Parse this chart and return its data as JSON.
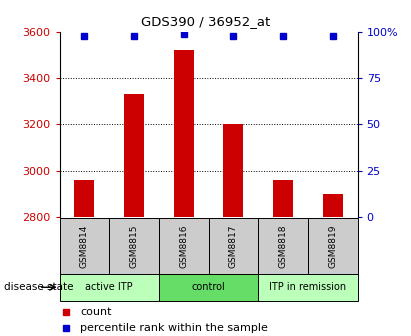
{
  "title": "GDS390 / 36952_at",
  "samples": [
    "GSM8814",
    "GSM8815",
    "GSM8816",
    "GSM8817",
    "GSM8818",
    "GSM8819"
  ],
  "counts": [
    2960,
    3330,
    3520,
    3200,
    2960,
    2900
  ],
  "percentile_ranks": [
    98,
    98,
    99,
    98,
    98,
    98
  ],
  "bar_color": "#cc0000",
  "dot_color": "#0000cc",
  "ylim_left": [
    2800,
    3600
  ],
  "ylim_right": [
    0,
    100
  ],
  "yticks_left": [
    2800,
    3000,
    3200,
    3400,
    3600
  ],
  "yticks_right": [
    0,
    25,
    50,
    75,
    100
  ],
  "ytick_labels_right": [
    "0",
    "25",
    "50",
    "75",
    "100%"
  ],
  "groups": [
    {
      "label": "active ITP",
      "start": 0,
      "end": 2,
      "color": "#bbffbb"
    },
    {
      "label": "control",
      "start": 2,
      "end": 4,
      "color": "#66dd66"
    },
    {
      "label": "ITP in remission",
      "start": 4,
      "end": 6,
      "color": "#bbffbb"
    }
  ],
  "disease_state_label": "disease state",
  "legend_count_label": "count",
  "legend_percentile_label": "percentile rank within the sample",
  "bar_bottom": 2800,
  "grid_dotted_ticks": [
    3000,
    3200,
    3400
  ],
  "bar_width": 0.4,
  "sample_box_color": "#cccccc",
  "left_color": "#cc0000",
  "right_color": "#0000cc",
  "title_fontsize": 9.5
}
